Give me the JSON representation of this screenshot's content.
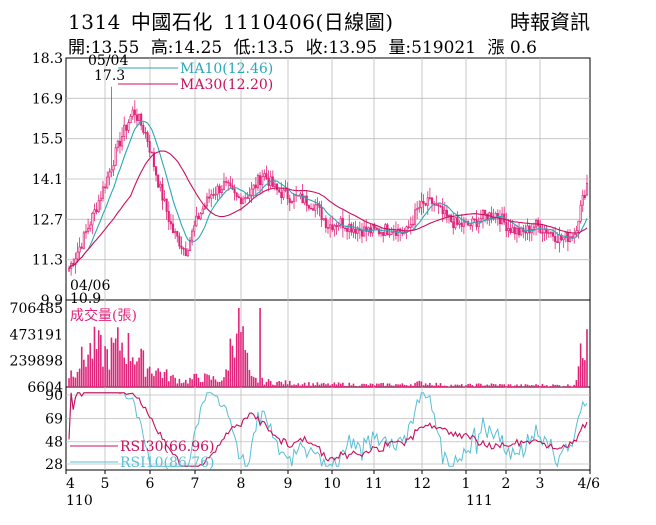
{
  "header": {
    "code": "1314",
    "name": "中國石化",
    "date": "1110406",
    "chart_kind": "(日線圖)",
    "publisher": "時報資訊",
    "open": "開:13.55",
    "high": "高:14.25",
    "low": "低:13.5",
    "close": "收:13.95",
    "volume": "量:519021",
    "change": "漲 0.6"
  },
  "colors": {
    "candle": "#e0247a",
    "ma10": "#2aa7b8",
    "ma30": "#c8105e",
    "volume": "#e0247a",
    "rsi30": "#c8105e",
    "rsi10": "#58bfd6",
    "grid": "#bdbdbd"
  },
  "chart_data": [
    {
      "type": "candlestick",
      "panel": "price",
      "y_ticks": [
        "18.3",
        "16.9",
        "15.5",
        "14.1",
        "12.7",
        "11.3",
        "9.9"
      ],
      "ylim": [
        9.9,
        18.3
      ],
      "grid": true,
      "legend": [
        {
          "name": "MA10(12.46)",
          "color": "#2aa7b8"
        },
        {
          "name": "MA30(12.20)",
          "color": "#c8105e"
        }
      ],
      "annotations": [
        {
          "text": "05/04",
          "note": "high date"
        },
        {
          "text": "17.3",
          "note": "high value"
        },
        {
          "text": "04/06",
          "note": "low date"
        },
        {
          "text": "10.9",
          "note": "low value"
        }
      ],
      "key_points": {
        "start_close": 10.9,
        "high": {
          "date": "05/04",
          "value": 17.3
        },
        "low": {
          "date": "04/06",
          "value": 10.9
        },
        "last": {
          "open": 13.55,
          "high": 14.25,
          "low": 13.5,
          "close": 13.95
        }
      },
      "series_samples": {
        "close": [
          11.0,
          11.9,
          13.0,
          14.2,
          15.5,
          16.5,
          15.6,
          13.8,
          12.3,
          11.6,
          12.8,
          13.6,
          13.9,
          13.4,
          13.6,
          14.3,
          13.7,
          13.5,
          13.4,
          13.2,
          12.5,
          12.6,
          12.4,
          12.3,
          12.3,
          12.4,
          12.2,
          13.1,
          13.3,
          12.8,
          12.5,
          12.5,
          12.8,
          12.9,
          12.4,
          12.2,
          12.5,
          12.3,
          12.0,
          12.2,
          13.95
        ]
      }
    },
    {
      "type": "bar",
      "panel": "volume",
      "label": "成交量(張)",
      "y_ticks": [
        "706485",
        "473191",
        "239898",
        "6604"
      ],
      "ylim": [
        6604,
        706485
      ],
      "samples": [
        120000,
        260000,
        380000,
        300000,
        420000,
        330000,
        200000,
        150000,
        90000,
        60000,
        100000,
        85000,
        70000,
        706485,
        80000,
        60000,
        50000,
        45000,
        40000,
        35000,
        30000,
        35000,
        30000,
        28000,
        30000,
        32000,
        28000,
        45000,
        40000,
        25000,
        22000,
        25000,
        30000,
        28000,
        25000,
        22000,
        25000,
        25000,
        22000,
        25000,
        519021
      ]
    },
    {
      "type": "line",
      "panel": "rsi",
      "y_ticks": [
        "90",
        "69",
        "48",
        "28"
      ],
      "ylim": [
        28,
        90
      ],
      "series": [
        {
          "name": "RSI30(66.96)",
          "color": "#c8105e"
        },
        {
          "name": "RSI10(86.76)",
          "color": "#58bfd6"
        }
      ]
    }
  ],
  "x_axis": {
    "months": [
      "4",
      "5",
      "6",
      "7",
      "8",
      "9",
      "10",
      "11",
      "12",
      "1",
      "2",
      "3",
      "4/6"
    ],
    "years": [
      {
        "label": "110"
      },
      {
        "label": "111"
      }
    ]
  }
}
